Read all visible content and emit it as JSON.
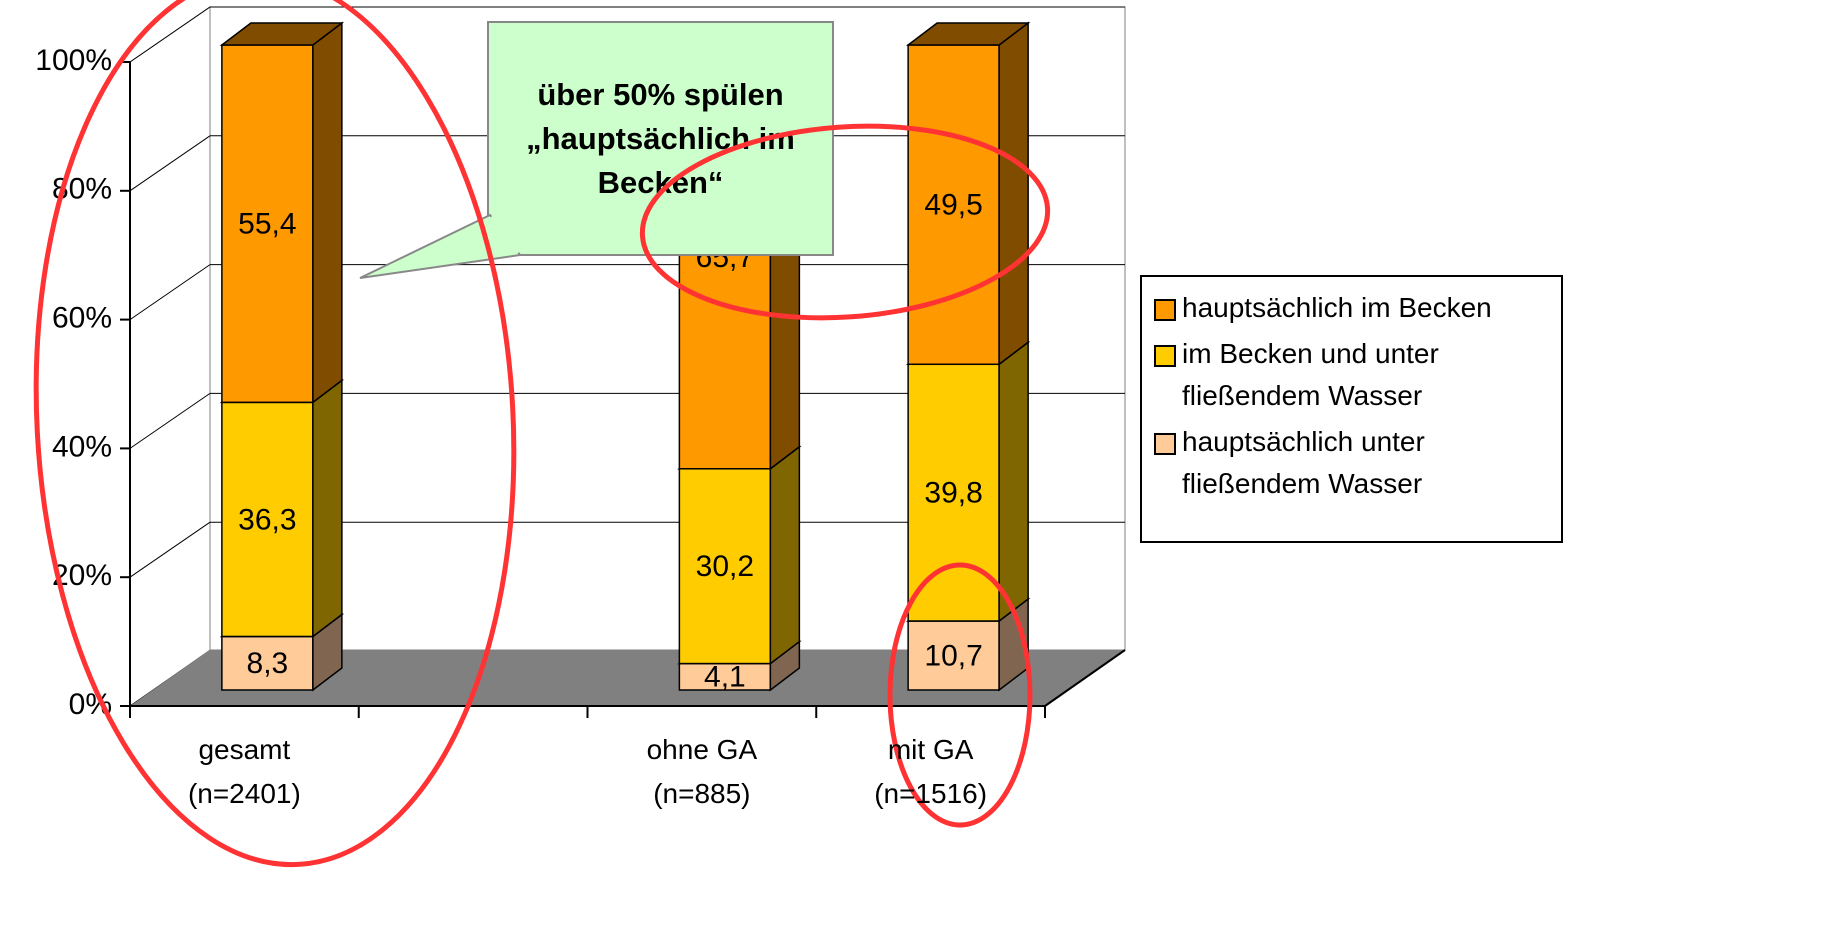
{
  "chart_data": {
    "type": "bar3d_stacked",
    "categories": [
      "gesamt (n=2401)",
      null,
      "ohne GA (n=885)",
      "mit GA (n=1516)"
    ],
    "series": [
      {
        "name": "hauptsächlich im Becken",
        "color": "#FF9900",
        "side_color": "#804C00",
        "values": [
          55.4,
          null,
          65.7,
          49.5
        ],
        "value_labels": [
          "55,4",
          null,
          "65,7",
          "49,5"
        ]
      },
      {
        "name": "im Becken und unter fließendem Wasser",
        "color": "#FFCC00",
        "side_color": "#806600",
        "values": [
          36.3,
          null,
          30.2,
          39.8
        ],
        "value_labels": [
          "36,3",
          null,
          "30,2",
          "39,8"
        ]
      },
      {
        "name": "hauptsächlich unter fließendem Wasser",
        "color": "#FFCC99",
        "side_color": "#806650",
        "values": [
          8.3,
          null,
          4.1,
          10.7
        ],
        "value_labels": [
          "8,3",
          null,
          "4,1",
          "10,7"
        ]
      }
    ],
    "ylim": [
      0,
      100
    ],
    "yticks": [
      {
        "value": 0,
        "label": "0%"
      },
      {
        "value": 20,
        "label": "20%"
      },
      {
        "value": 40,
        "label": "40%"
      },
      {
        "value": 60,
        "label": "60%"
      },
      {
        "value": 80,
        "label": "80%"
      },
      {
        "value": 100,
        "label": "100%"
      }
    ],
    "grid": true,
    "legend": "right",
    "annotation": "über 50% spülen „hauptsächlich im Becken“"
  }
}
